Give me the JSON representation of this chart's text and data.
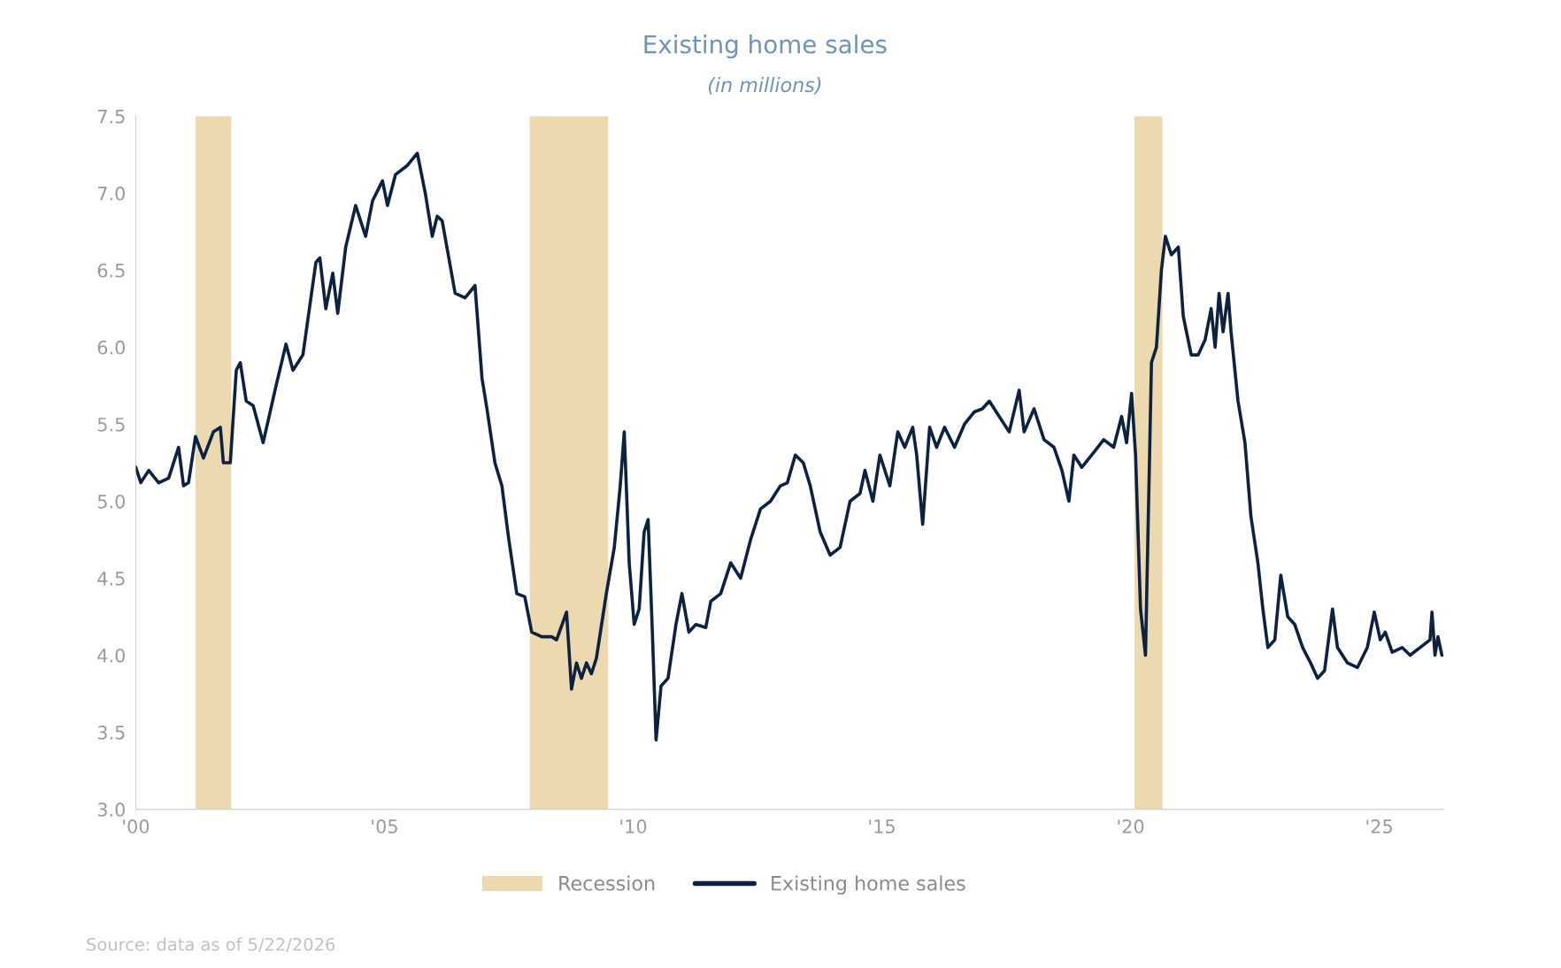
{
  "chart_data": {
    "type": "line",
    "title": "Existing home sales",
    "subtitle": "(in millions)",
    "series": [
      {
        "name": "Existing home sales",
        "color": "#0d2240",
        "x": [
          2000.0,
          2000.1,
          2000.26,
          2000.46,
          2000.66,
          2000.86,
          2000.96,
          2001.06,
          2001.2,
          2001.36,
          2001.56,
          2001.7,
          2001.76,
          2001.9,
          2002.02,
          2002.1,
          2002.22,
          2002.36,
          2002.56,
          2002.82,
          2003.02,
          2003.16,
          2003.36,
          2003.62,
          2003.7,
          2003.82,
          2003.96,
          2004.06,
          2004.22,
          2004.42,
          2004.62,
          2004.76,
          2004.96,
          2005.06,
          2005.22,
          2005.46,
          2005.66,
          2005.82,
          2005.96,
          2006.06,
          2006.16,
          2006.42,
          2006.62,
          2006.82,
          2006.96,
          2007.06,
          2007.22,
          2007.36,
          2007.5,
          2007.66,
          2007.82,
          2007.96,
          2008.16,
          2008.36,
          2008.46,
          2008.66,
          2008.76,
          2008.86,
          2008.96,
          2009.06,
          2009.16,
          2009.26,
          2009.46,
          2009.62,
          2009.74,
          2009.82,
          2009.92,
          2010.02,
          2010.12,
          2010.22,
          2010.3,
          2010.38,
          2010.46,
          2010.56,
          2010.7,
          2010.86,
          2010.98,
          2011.12,
          2011.26,
          2011.46,
          2011.56,
          2011.76,
          2011.96,
          2012.16,
          2012.36,
          2012.56,
          2012.76,
          2012.96,
          2013.1,
          2013.26,
          2013.42,
          2013.56,
          2013.76,
          2013.96,
          2014.16,
          2014.36,
          2014.56,
          2014.66,
          2014.82,
          2014.96,
          2015.16,
          2015.32,
          2015.46,
          2015.62,
          2015.7,
          2015.82,
          2015.96,
          2016.1,
          2016.26,
          2016.46,
          2016.66,
          2016.86,
          2017.02,
          2017.16,
          2017.36,
          2017.56,
          2017.76,
          2017.86,
          2018.06,
          2018.26,
          2018.46,
          2018.62,
          2018.76,
          2018.86,
          2019.02,
          2019.22,
          2019.46,
          2019.66,
          2019.82,
          2019.92,
          2020.02,
          2020.1,
          2020.2,
          2020.3,
          2020.42,
          2020.52,
          2020.62,
          2020.7,
          2020.82,
          2020.96,
          2021.06,
          2021.22,
          2021.36,
          2021.5,
          2021.62,
          2021.7,
          2021.78,
          2021.86,
          2021.96,
          2022.02,
          2022.16,
          2022.3,
          2022.42,
          2022.56,
          2022.66,
          2022.76,
          2022.9,
          2023.02,
          2023.16,
          2023.3,
          2023.46,
          2023.62,
          2023.76,
          2023.9,
          2024.06,
          2024.16,
          2024.36,
          2024.56,
          2024.76,
          2024.9,
          2025.02,
          2025.12,
          2025.26,
          2025.46,
          2025.62,
          2025.82,
          2026.02,
          2026.06,
          2026.12,
          2026.18,
          2026.26
        ],
        "values": [
          5.22,
          5.12,
          5.2,
          5.12,
          5.15,
          5.35,
          5.1,
          5.12,
          5.42,
          5.28,
          5.45,
          5.48,
          5.25,
          5.25,
          5.85,
          5.9,
          5.65,
          5.62,
          5.38,
          5.75,
          6.02,
          5.85,
          5.95,
          6.55,
          6.58,
          6.25,
          6.48,
          6.22,
          6.65,
          6.92,
          6.72,
          6.95,
          7.08,
          6.92,
          7.12,
          7.18,
          7.26,
          7.0,
          6.72,
          6.85,
          6.82,
          6.35,
          6.32,
          6.4,
          5.8,
          5.6,
          5.25,
          5.1,
          4.75,
          4.4,
          4.38,
          4.15,
          4.12,
          4.12,
          4.1,
          4.28,
          3.78,
          3.95,
          3.85,
          3.95,
          3.88,
          3.98,
          4.4,
          4.7,
          5.1,
          5.45,
          4.6,
          4.2,
          4.3,
          4.8,
          4.88,
          4.2,
          3.45,
          3.8,
          3.85,
          4.2,
          4.4,
          4.15,
          4.2,
          4.18,
          4.35,
          4.4,
          4.6,
          4.5,
          4.75,
          4.95,
          5.0,
          5.1,
          5.12,
          5.3,
          5.25,
          5.1,
          4.8,
          4.65,
          4.7,
          5.0,
          5.05,
          5.2,
          5.0,
          5.3,
          5.1,
          5.45,
          5.35,
          5.48,
          5.3,
          4.85,
          5.48,
          5.35,
          5.48,
          5.35,
          5.5,
          5.58,
          5.6,
          5.65,
          5.55,
          5.45,
          5.72,
          5.45,
          5.6,
          5.4,
          5.35,
          5.2,
          5.0,
          5.3,
          5.22,
          5.3,
          5.4,
          5.35,
          5.55,
          5.38,
          5.7,
          5.3,
          4.3,
          4.0,
          5.9,
          6.0,
          6.5,
          6.72,
          6.6,
          6.65,
          6.2,
          5.95,
          5.95,
          6.05,
          6.25,
          6.0,
          6.35,
          6.1,
          6.35,
          6.1,
          5.65,
          5.38,
          4.9,
          4.6,
          4.3,
          4.05,
          4.1,
          4.52,
          4.25,
          4.2,
          4.05,
          3.95,
          3.85,
          3.9,
          4.3,
          4.05,
          3.95,
          3.92,
          4.05,
          4.28,
          4.1,
          4.15,
          4.02,
          4.05,
          4.0,
          4.05,
          4.1,
          4.28,
          4.0,
          4.12,
          4.0
        ]
      }
    ],
    "bands": [
      {
        "axis": "x",
        "from": 2001.2,
        "to": 2001.92,
        "label": "Recession",
        "color": "#ecd9b0"
      },
      {
        "axis": "x",
        "from": 2007.92,
        "to": 2009.5,
        "color": "#ecd9b0"
      },
      {
        "axis": "x",
        "from": 2020.08,
        "to": 2020.64,
        "color": "#ecd9b0"
      }
    ],
    "xlim": [
      2000,
      2026.3
    ],
    "xticks": [
      {
        "value": 2000,
        "label": "'00"
      },
      {
        "value": 2005,
        "label": "'05"
      },
      {
        "value": 2010,
        "label": "'10"
      },
      {
        "value": 2015,
        "label": "'15"
      },
      {
        "value": 2020,
        "label": "'20"
      },
      {
        "value": 2025,
        "label": "'25"
      }
    ],
    "ylim": [
      3.0,
      7.5
    ],
    "yticks": [
      {
        "value": 3.0,
        "label": "3.0"
      },
      {
        "value": 3.5,
        "label": "3.5"
      },
      {
        "value": 4.0,
        "label": "4.0"
      },
      {
        "value": 4.5,
        "label": "4.5"
      },
      {
        "value": 5.0,
        "label": "5.0"
      },
      {
        "value": 5.5,
        "label": "5.5"
      },
      {
        "value": 6.0,
        "label": "6.0"
      },
      {
        "value": 6.5,
        "label": "6.5"
      },
      {
        "value": 7.0,
        "label": "7.0"
      },
      {
        "value": 7.5,
        "label": "7.5"
      }
    ],
    "grid": false,
    "legend": "bottom",
    "line_style": "solid",
    "annotations": [
      "Source: data as of 5/22/2026"
    ]
  }
}
